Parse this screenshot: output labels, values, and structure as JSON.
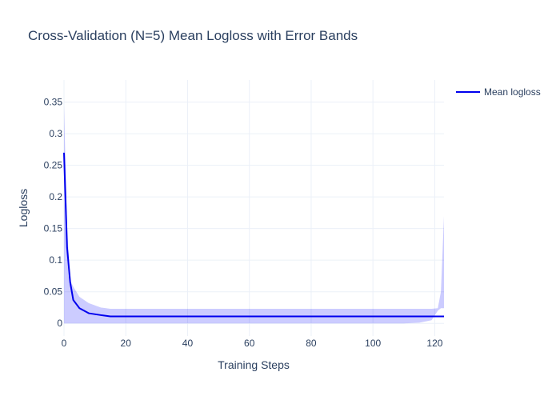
{
  "chart_data": {
    "type": "line",
    "title": "Cross-Validation (N=5) Mean Logloss with Error Bands",
    "xlabel": "Training Steps",
    "ylabel": "Logloss",
    "xlim": [
      0,
      123
    ],
    "ylim": [
      -0.02,
      0.385
    ],
    "x_ticks": [
      0,
      20,
      40,
      60,
      80,
      100,
      120
    ],
    "y_ticks": [
      0,
      0.05,
      0.1,
      0.15,
      0.2,
      0.25,
      0.3,
      0.35
    ],
    "y_tick_labels": [
      "0",
      "0.05",
      "0.1",
      "0.15",
      "0.2",
      "0.25",
      "0.3",
      "0.35"
    ],
    "grid": true,
    "legend_position": "top-right",
    "series": [
      {
        "name": "Mean logloss",
        "color": "#0000ee",
        "x": [
          0,
          1,
          2,
          3,
          5,
          8,
          12,
          15,
          20,
          40,
          60,
          80,
          100,
          110,
          115,
          119,
          121,
          122,
          123
        ],
        "values": [
          0.27,
          0.12,
          0.065,
          0.037,
          0.024,
          0.016,
          0.013,
          0.011,
          0.011,
          0.011,
          0.011,
          0.011,
          0.011,
          0.011,
          0.011,
          0.011,
          0.011,
          0.011,
          0.011
        ]
      }
    ],
    "error_band": {
      "color": "rgba(0,0,255,0.2)",
      "x": [
        0,
        1,
        2,
        3,
        5,
        8,
        12,
        15,
        20,
        40,
        60,
        80,
        100,
        110,
        115,
        119,
        121,
        122,
        123
      ],
      "upper": [
        0.345,
        0.155,
        0.068,
        0.058,
        0.042,
        0.032,
        0.025,
        0.023,
        0.023,
        0.023,
        0.023,
        0.023,
        0.023,
        0.023,
        0.023,
        0.023,
        0.024,
        0.05,
        0.17
      ],
      "lower": [
        0.0,
        0.0,
        0.0,
        0.0,
        0.0,
        0.0,
        0.0,
        0.0,
        0.0,
        0.0,
        0.0,
        0.0,
        0.0,
        0.0,
        0.001,
        0.005,
        0.02,
        0.024,
        0.024
      ]
    }
  }
}
